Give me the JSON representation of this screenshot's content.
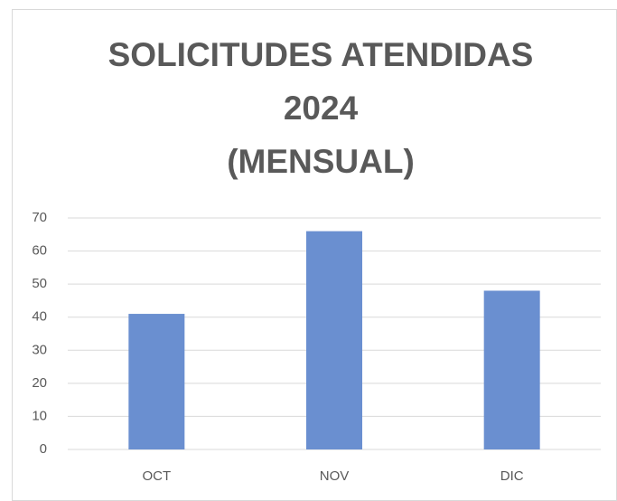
{
  "chart_data": {
    "type": "bar",
    "title": [
      "SOLICITUDES ATENDIDAS",
      "2024",
      "(MENSUAL)"
    ],
    "categories": [
      "OCT",
      "NOV",
      "DIC"
    ],
    "values": [
      41,
      66,
      48
    ],
    "color": "#6a8fd0",
    "ylim": [
      0,
      70
    ],
    "yticks": [
      0,
      10,
      20,
      30,
      40,
      50,
      60,
      70
    ],
    "grid": true
  }
}
